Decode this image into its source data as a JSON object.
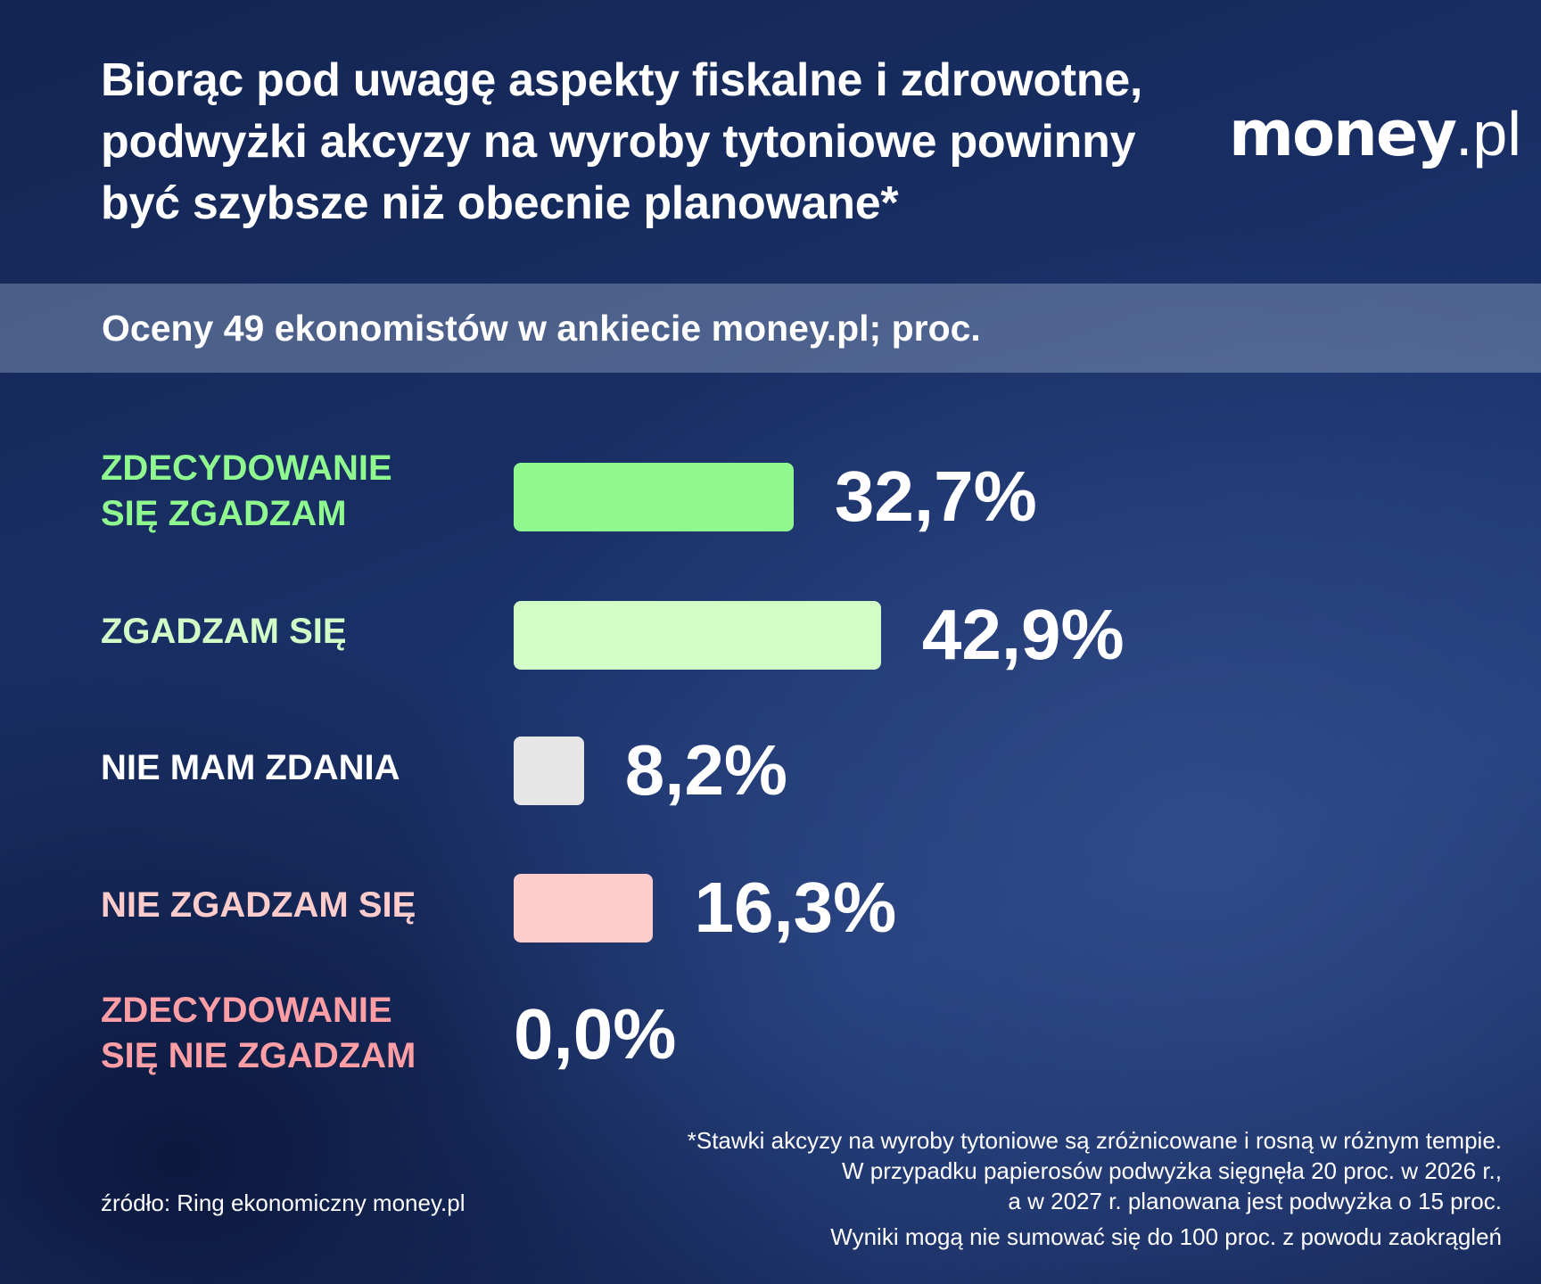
{
  "header": {
    "title_lines": [
      "Biorąc pod uwagę aspekty fiskalne i zdrowotne,",
      "podwyżki akcyzy na wyroby tytoniowe powinny",
      "być szybsze niż obecnie planowane*"
    ],
    "logo_brand": "money",
    "logo_tld": ".pl"
  },
  "subtitle": "Oceny 49 ekonomistów w ankiecie money.pl; proc.",
  "chart_data": {
    "type": "bar",
    "orientation": "horizontal",
    "title": "Biorąc pod uwagę aspekty fiskalne i zdrowotne, podwyżki akcyzy na wyroby tytoniowe powinny być szybsze niż obecnie planowane*",
    "subtitle": "Oceny 49 ekonomistów w ankiecie money.pl; proc.",
    "unit": "%",
    "xlim": [
      0,
      100
    ],
    "grid": false,
    "legend": "none",
    "categories": [
      "ZDECYDOWANIE\nSIĘ ZGADZAM",
      "ZGADZAM SIĘ",
      "NIE MAM ZDANIA",
      "NIE ZGADZAM SIĘ",
      "ZDECYDOWANIE\nSIĘ NIE ZGADZAM"
    ],
    "values": [
      32.7,
      42.9,
      8.2,
      16.3,
      0.0
    ],
    "value_labels": [
      "32,7%",
      "42,9%",
      "8,2%",
      "16,3%",
      "0,0%"
    ],
    "bar_colors": [
      "#8ff98f",
      "#d2fdc6",
      "#e6e6e6",
      "#ffcccc",
      "#ffa0a6"
    ],
    "label_colors": [
      "#8ff98f",
      "#d2fdc6",
      "#ffffff",
      "#ffcccc",
      "#ff9ea4"
    ]
  },
  "footer": {
    "footnote_lines": [
      "*Stawki akcyzy na wyroby tytoniowe są zróżnicowane i rosną w różnym tempie.",
      "W przypadku papierosów podwyżka sięgnęła 20 proc. w 2026 r.,",
      "a w 2027 r. planowana jest podwyżka o 15 proc."
    ],
    "rounding_note": "Wyniki mogą nie sumować się do 100 proc. z powodu zaokrągleń",
    "source": "źródło: Ring ekonomiczny money.pl"
  }
}
